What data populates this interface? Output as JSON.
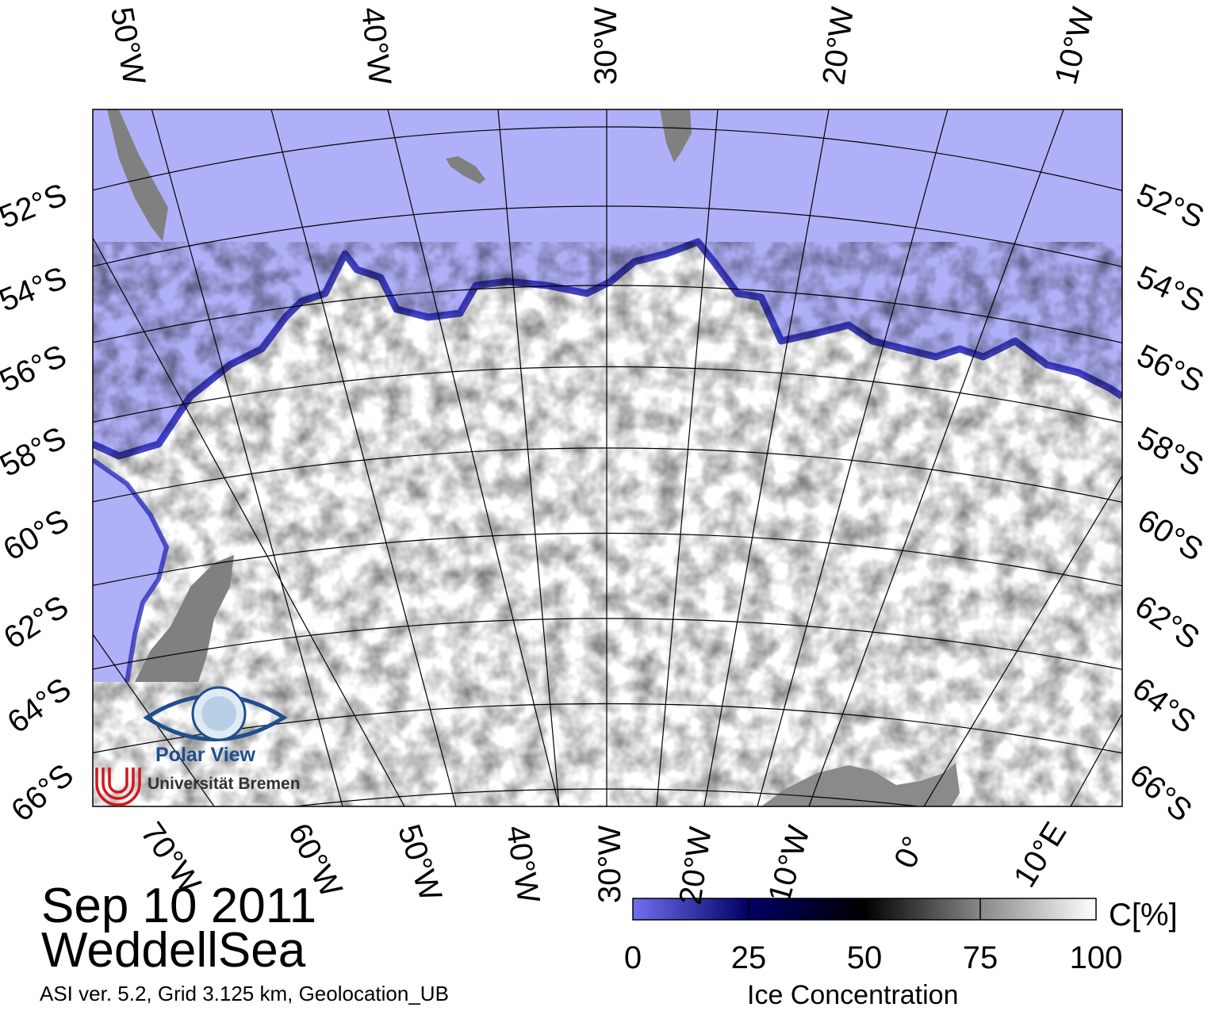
{
  "map": {
    "top_longitudes": [
      "50°W",
      "40°W",
      "30°W",
      "20°W",
      "10°W"
    ],
    "bottom_longitudes": [
      "70°W",
      "60°W",
      "50°W",
      "40°W",
      "30°W",
      "20°W",
      "10°W",
      "0°",
      "10°E"
    ],
    "left_latitudes": [
      "52°S",
      "54°S",
      "56°S",
      "58°S",
      "60°S",
      "62°S",
      "64°S",
      "66°S"
    ],
    "right_latitudes": [
      "52°S",
      "54°S",
      "56°S",
      "58°S",
      "60°S",
      "62°S",
      "64°S",
      "66°S"
    ],
    "colors": {
      "open_water": "#b0b0f8",
      "land": "#808080",
      "ice_full": "#ffffff",
      "ice_edge": "#1a1ab0"
    }
  },
  "logo": {
    "line1": "Polar View",
    "line2": "Universität Bremen"
  },
  "title": {
    "date": "Sep 10 2011",
    "region": "WeddellSea"
  },
  "footer": "ASI ver. 5.2,  Grid 3.125 km, Geolocation_UB",
  "colorbar": {
    "ticks": [
      "0",
      "25",
      "50",
      "75",
      "100"
    ],
    "unit": "C[%]",
    "title": "Ice Concentration",
    "colors": [
      "#7070f0",
      "#000066",
      "#000000",
      "#888888",
      "#ffffff"
    ]
  }
}
